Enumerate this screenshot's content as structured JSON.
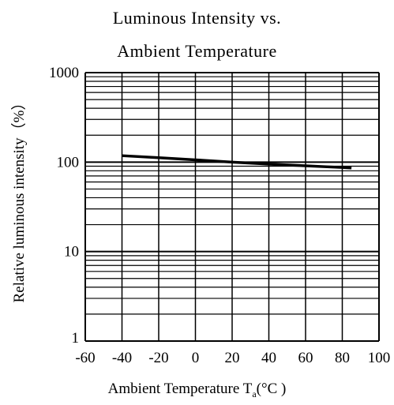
{
  "title_line1": "Luminous Intensity vs.",
  "title_line2": "Ambient Temperature",
  "xlabel": {
    "text": "Ambient Temperature T",
    "sub": "a",
    "unit": "(°C )"
  },
  "ylabel": "Relative luminous intensity（%）",
  "chart_data": {
    "type": "line",
    "title": "Luminous Intensity vs. Ambient Temperature",
    "xlabel": "Ambient Temperature Ta(°C )",
    "ylabel": "Relative luminous intensity（%）",
    "y_scale": "log",
    "xlim": [
      -60,
      100
    ],
    "ylim": [
      1,
      1000
    ],
    "x_ticks": [
      -60,
      -40,
      -20,
      0,
      20,
      40,
      60,
      80,
      100
    ],
    "y_ticks": [
      1,
      10,
      100,
      1000
    ],
    "grid": true,
    "series": [
      {
        "x": [
          -40,
          -20,
          0,
          20,
          40,
          60,
          80,
          85
        ],
        "y": [
          118,
          112,
          106,
          100,
          95,
          91,
          87,
          86
        ]
      }
    ],
    "line_color": "#000000"
  }
}
